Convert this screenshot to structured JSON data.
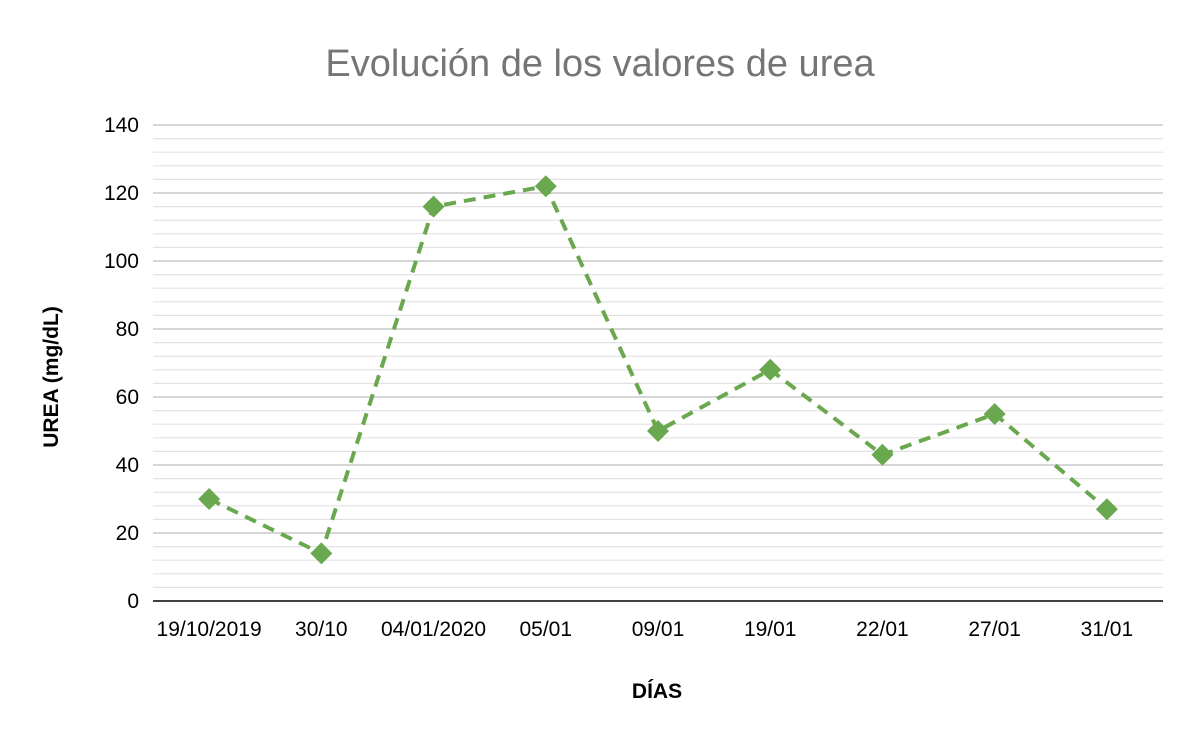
{
  "chart_data": {
    "type": "line",
    "title": "Evolución de los valores de urea",
    "xlabel": "DÍAS",
    "ylabel": "UREA (mg/dL)",
    "categories": [
      "19/10/2019",
      "30/10",
      "04/01/2020",
      "05/01",
      "09/01",
      "19/01",
      "22/01",
      "27/01",
      "31/01"
    ],
    "series": [
      {
        "values": [
          30,
          14,
          116,
          122,
          50,
          68,
          43,
          55,
          27
        ]
      }
    ],
    "ylim": [
      0,
      140
    ],
    "yticks": [
      "0",
      "20",
      "40",
      "60",
      "80",
      "100",
      "120",
      "140"
    ],
    "grid": true,
    "minor_grid": true,
    "legend": "none",
    "line_style": "dashed",
    "marker": "diamond",
    "colors": {
      "series": "#6aa84f",
      "major_grid": "#c8c8c8",
      "minor_grid": "#e2e2e2",
      "axis": "#000000",
      "title": "#757575"
    }
  }
}
